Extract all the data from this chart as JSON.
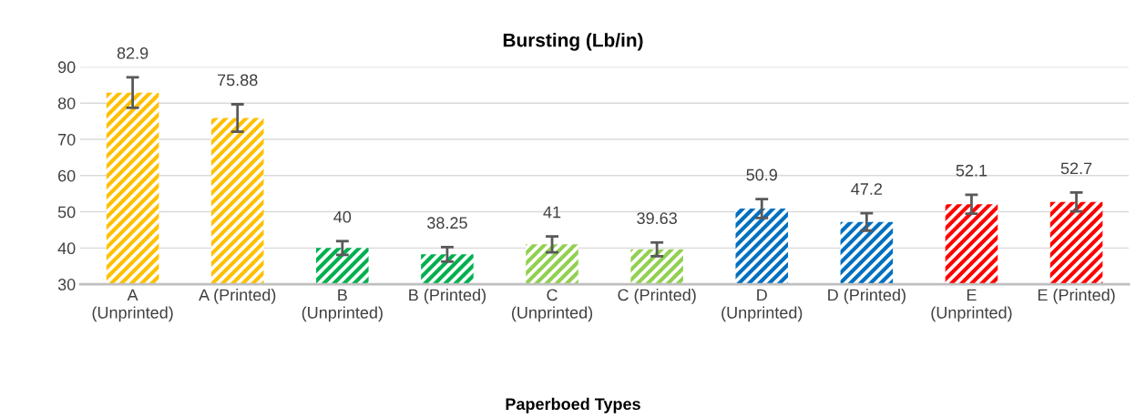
{
  "chart_data": {
    "type": "bar",
    "title": "Bursting (Lb/in)",
    "xlabel": "Paperboed Types",
    "categories": [
      "A\n(Unprinted)",
      "A (Printed)",
      "B\n(Unprinted)",
      "B (Printed)",
      "C\n(Unprinted)",
      "C (Printed)",
      "D\n(Unprinted)",
      "D (Printed)",
      "E\n(Unprinted)",
      "E (Printed)"
    ],
    "values": [
      82.9,
      75.88,
      40,
      38.25,
      41,
      39.63,
      50.9,
      47.2,
      52.1,
      52.7
    ],
    "errors": [
      4.2,
      3.8,
      1.9,
      2,
      2.2,
      1.9,
      2.6,
      2.4,
      2.6,
      2.6
    ],
    "colors": [
      "#ffc000",
      "#ffc000",
      "#00b050",
      "#00b050",
      "#92d050",
      "#92d050",
      "#0070c0",
      "#0070c0",
      "#ff0000",
      "#ff0000"
    ],
    "ylim": [
      30,
      90
    ],
    "yticks": [
      30,
      40,
      50,
      60,
      70,
      80,
      90
    ],
    "grid": "y",
    "data_labels": true,
    "legend": false
  }
}
